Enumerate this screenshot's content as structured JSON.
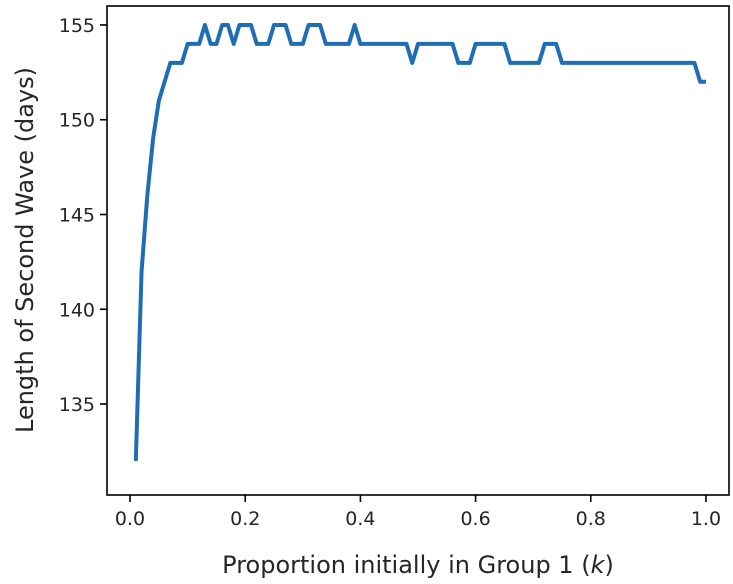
{
  "chart_data": {
    "type": "line",
    "xlabel_prefix": "Proportion initially in Group 1 (",
    "xlabel_var": "k",
    "xlabel_suffix": ")",
    "ylabel": "Length of Second Wave (days)",
    "xlim": [
      -0.04,
      1.04
    ],
    "ylim": [
      130.2,
      156.0
    ],
    "grid": false,
    "line_color": "#1f6db3",
    "x_ticks": [
      0.0,
      0.2,
      0.4,
      0.6,
      0.8,
      1.0
    ],
    "x_tick_labels": [
      "0.0",
      "0.2",
      "0.4",
      "0.6",
      "0.8",
      "1.0"
    ],
    "y_ticks": [
      135,
      140,
      145,
      150,
      155
    ],
    "y_tick_labels": [
      "135",
      "140",
      "145",
      "150",
      "155"
    ],
    "series": [
      {
        "x": [
          0.01,
          0.02,
          0.03,
          0.04,
          0.05,
          0.06,
          0.07,
          0.08,
          0.09,
          0.1,
          0.11,
          0.12,
          0.13,
          0.14,
          0.15,
          0.16,
          0.17,
          0.18,
          0.19,
          0.2,
          0.21,
          0.22,
          0.23,
          0.24,
          0.25,
          0.26,
          0.27,
          0.28,
          0.29,
          0.3,
          0.31,
          0.32,
          0.33,
          0.34,
          0.35,
          0.36,
          0.37,
          0.38,
          0.39,
          0.4,
          0.41,
          0.42,
          0.43,
          0.44,
          0.45,
          0.46,
          0.47,
          0.48,
          0.49,
          0.5,
          0.51,
          0.52,
          0.53,
          0.54,
          0.55,
          0.56,
          0.57,
          0.58,
          0.59,
          0.6,
          0.61,
          0.62,
          0.63,
          0.64,
          0.65,
          0.66,
          0.67,
          0.68,
          0.69,
          0.7,
          0.71,
          0.72,
          0.73,
          0.74,
          0.75,
          0.76,
          0.77,
          0.78,
          0.79,
          0.8,
          0.81,
          0.82,
          0.83,
          0.84,
          0.85,
          0.86,
          0.87,
          0.88,
          0.89,
          0.9,
          0.91,
          0.92,
          0.93,
          0.94,
          0.95,
          0.96,
          0.97,
          0.98,
          0.99,
          1.0
        ],
        "values": [
          132,
          142,
          146,
          149,
          151,
          152,
          153,
          153,
          153,
          154,
          154,
          154,
          155,
          154,
          154,
          155,
          155,
          154,
          155,
          155,
          155,
          154,
          154,
          154,
          155,
          155,
          155,
          154,
          154,
          154,
          155,
          155,
          155,
          154,
          154,
          154,
          154,
          154,
          155,
          154,
          154,
          154,
          154,
          154,
          154,
          154,
          154,
          154,
          153,
          154,
          154,
          154,
          154,
          154,
          154,
          154,
          153,
          153,
          153,
          154,
          154,
          154,
          154,
          154,
          154,
          153,
          153,
          153,
          153,
          153,
          153,
          154,
          154,
          154,
          153,
          153,
          153,
          153,
          153,
          153,
          153,
          153,
          153,
          153,
          153,
          153,
          153,
          153,
          153,
          153,
          153,
          153,
          153,
          153,
          153,
          153,
          153,
          153,
          152,
          152
        ]
      }
    ]
  }
}
